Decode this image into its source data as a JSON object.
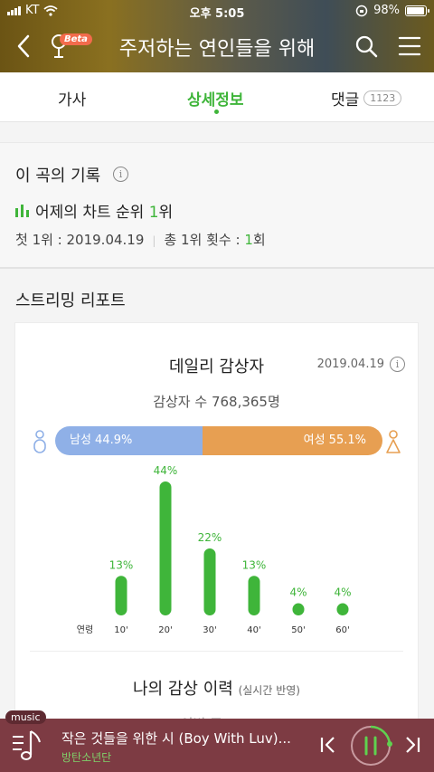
{
  "status": {
    "carrier": "KT",
    "time": "오후 5:05",
    "battery": "98%"
  },
  "header": {
    "title": "주저하는 연인들을 위해",
    "beta_label": "Beta"
  },
  "tabs": [
    {
      "label": "가사"
    },
    {
      "label": "상세정보",
      "active": true
    },
    {
      "label": "댓글",
      "count": "1123"
    }
  ],
  "record": {
    "heading": "이 곡의 기록",
    "rank_prefix": "어제의 차트 순위 ",
    "rank_value": "1",
    "rank_suffix": "위",
    "first_label": "첫 1위 : 2019.04.19",
    "total_prefix": "총 1위 횟수 : ",
    "total_value": "1",
    "total_suffix": "회"
  },
  "streaming": {
    "heading": "스트리밍 리포트",
    "card_title": "데일리 감상자",
    "date": "2019.04.19",
    "listeners": "감상자 수 768,365명",
    "male_label": "남성 44.9%",
    "female_label": "여성 55.1%",
    "male_share": 44.9,
    "female_share": 55.1,
    "history_title": "나의 감상 이력",
    "history_note": "(실시간 반영)",
    "history_sub": "이번 주 ......"
  },
  "chart_data": {
    "type": "bar",
    "xlabel": "연령",
    "categories": [
      "10'",
      "20'",
      "30'",
      "40'",
      "50'",
      "60'"
    ],
    "values": [
      13,
      44,
      22,
      13,
      4,
      4
    ],
    "labels": [
      "13%",
      "44%",
      "22%",
      "13%",
      "4%",
      "4%"
    ],
    "ylim": [
      0,
      44
    ]
  },
  "player": {
    "tag": "music",
    "song": "작은 것들을 위한 시 (Boy With Luv)...",
    "artist": "방탄소년단"
  },
  "colors": {
    "accent": "#3fb53a",
    "male": "#8fb0e7",
    "female": "#e79f52",
    "player_bg": "#7d3b43"
  }
}
